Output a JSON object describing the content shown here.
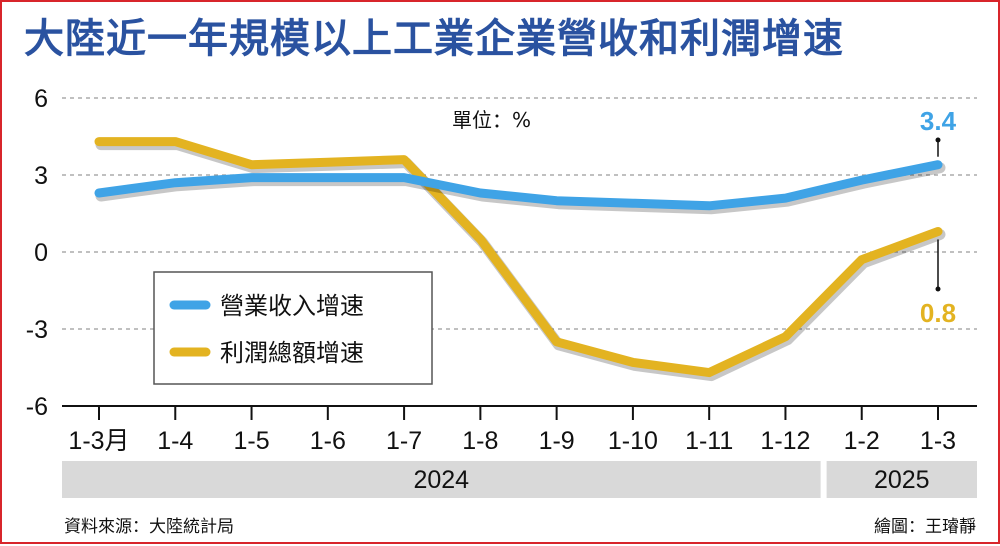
{
  "title": "大陸近一年規模以上工業企業營收和利潤增速",
  "unit_label": "單位：%",
  "source": "資料來源：大陸統計局",
  "credit": "繪圖：王璿靜",
  "colors": {
    "title": "#2a52a0",
    "revenue": "#3fa3e6",
    "profit": "#e3b321",
    "frame": "#d8252b",
    "year_band": "#d9d9d9"
  },
  "chart_data": {
    "type": "line",
    "title": "大陸近一年規模以上工業企業營收和利潤增速",
    "x": [
      "1-3月",
      "1-4",
      "1-5",
      "1-6",
      "1-7",
      "1-8",
      "1-9",
      "1-10",
      "1-11",
      "1-12",
      "1-2",
      "1-3"
    ],
    "year_groups": [
      {
        "label": "2024",
        "count": 10
      },
      {
        "label": "2025",
        "count": 2
      }
    ],
    "series": [
      {
        "name": "營業收入增速",
        "values": [
          2.3,
          2.7,
          2.9,
          2.9,
          2.9,
          2.3,
          2.0,
          1.9,
          1.8,
          2.1,
          2.8,
          3.4
        ]
      },
      {
        "name": "利潤總額增速",
        "values": [
          4.3,
          4.3,
          3.4,
          3.5,
          3.6,
          0.5,
          -3.5,
          -4.3,
          -4.7,
          -3.3,
          -0.3,
          0.8
        ]
      }
    ],
    "end_labels": [
      "3.4",
      "0.8"
    ],
    "ylim": [
      -6,
      6
    ],
    "yticks": [
      "6",
      "3",
      "0",
      "-3",
      "-6"
    ],
    "grid": true,
    "legend": "center-left"
  }
}
